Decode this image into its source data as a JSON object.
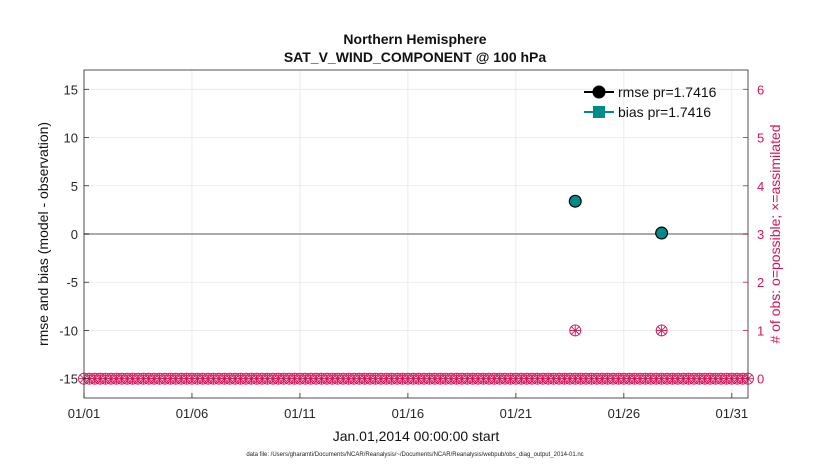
{
  "chart_data": {
    "type": "scatter",
    "title": "Northern Hemisphere",
    "subtitle": "SAT_V_WIND_COMPONENT @ 100 hPa",
    "xlabel": "Jan.01,2014 00:00:00 start",
    "ylabel": "rmse and bias (model - observation)",
    "y2label": "# of obs: o=possible; ×=assimilated",
    "xlim": [
      0,
      30.75
    ],
    "ylim": [
      -17,
      17
    ],
    "y2lim": [
      -0.4,
      6.4
    ],
    "x_ticks": [
      {
        "x": 0,
        "label": "01/01"
      },
      {
        "x": 5,
        "label": "01/06"
      },
      {
        "x": 10,
        "label": "01/11"
      },
      {
        "x": 15,
        "label": "01/16"
      },
      {
        "x": 20,
        "label": "01/21"
      },
      {
        "x": 25,
        "label": "01/26"
      },
      {
        "x": 30,
        "label": "01/31"
      }
    ],
    "y_ticks": [
      {
        "y": 15,
        "label": "15"
      },
      {
        "y": 10,
        "label": "10"
      },
      {
        "y": 5,
        "label": "5"
      },
      {
        "y": 0,
        "label": "0"
      },
      {
        "y": -5,
        "label": "-5"
      },
      {
        "y": -10,
        "label": "-10"
      },
      {
        "y": -15,
        "label": "-15"
      }
    ],
    "y2_ticks": [
      {
        "y": 6,
        "label": "6"
      },
      {
        "y": 5,
        "label": "5"
      },
      {
        "y": 4,
        "label": "4"
      },
      {
        "y": 3,
        "label": "3"
      },
      {
        "y": 2,
        "label": "2"
      },
      {
        "y": 1,
        "label": "1"
      },
      {
        "y": 0,
        "label": "0"
      }
    ],
    "series": [
      {
        "name": "rmse",
        "legend": "rmse pr=1.7416",
        "color": "#000000",
        "x": [
          22.75,
          26.75
        ],
        "y": [
          3.4,
          0.1
        ]
      },
      {
        "name": "bias",
        "legend": "bias pr=1.7416",
        "color": "#008b8b",
        "x": [
          22.75,
          26.75
        ],
        "y": [
          3.4,
          0.1
        ]
      }
    ],
    "obs_count": {
      "color": "#d4145a",
      "x_start": 0,
      "x_step": 0.25,
      "count": 124,
      "nonzero": [
        {
          "x": 22.75,
          "possible": 1,
          "assimilated": 1
        },
        {
          "x": 26.75,
          "possible": 1,
          "assimilated": 1
        }
      ]
    },
    "zero_line_color": "#9e9e9e"
  },
  "footer": "data file: /Users/gharamti/Documents/NCAR/Reanalysis/~/Documents/NCAR/Reanalysis/webpub/obs_diag_output_2014-01.nc"
}
